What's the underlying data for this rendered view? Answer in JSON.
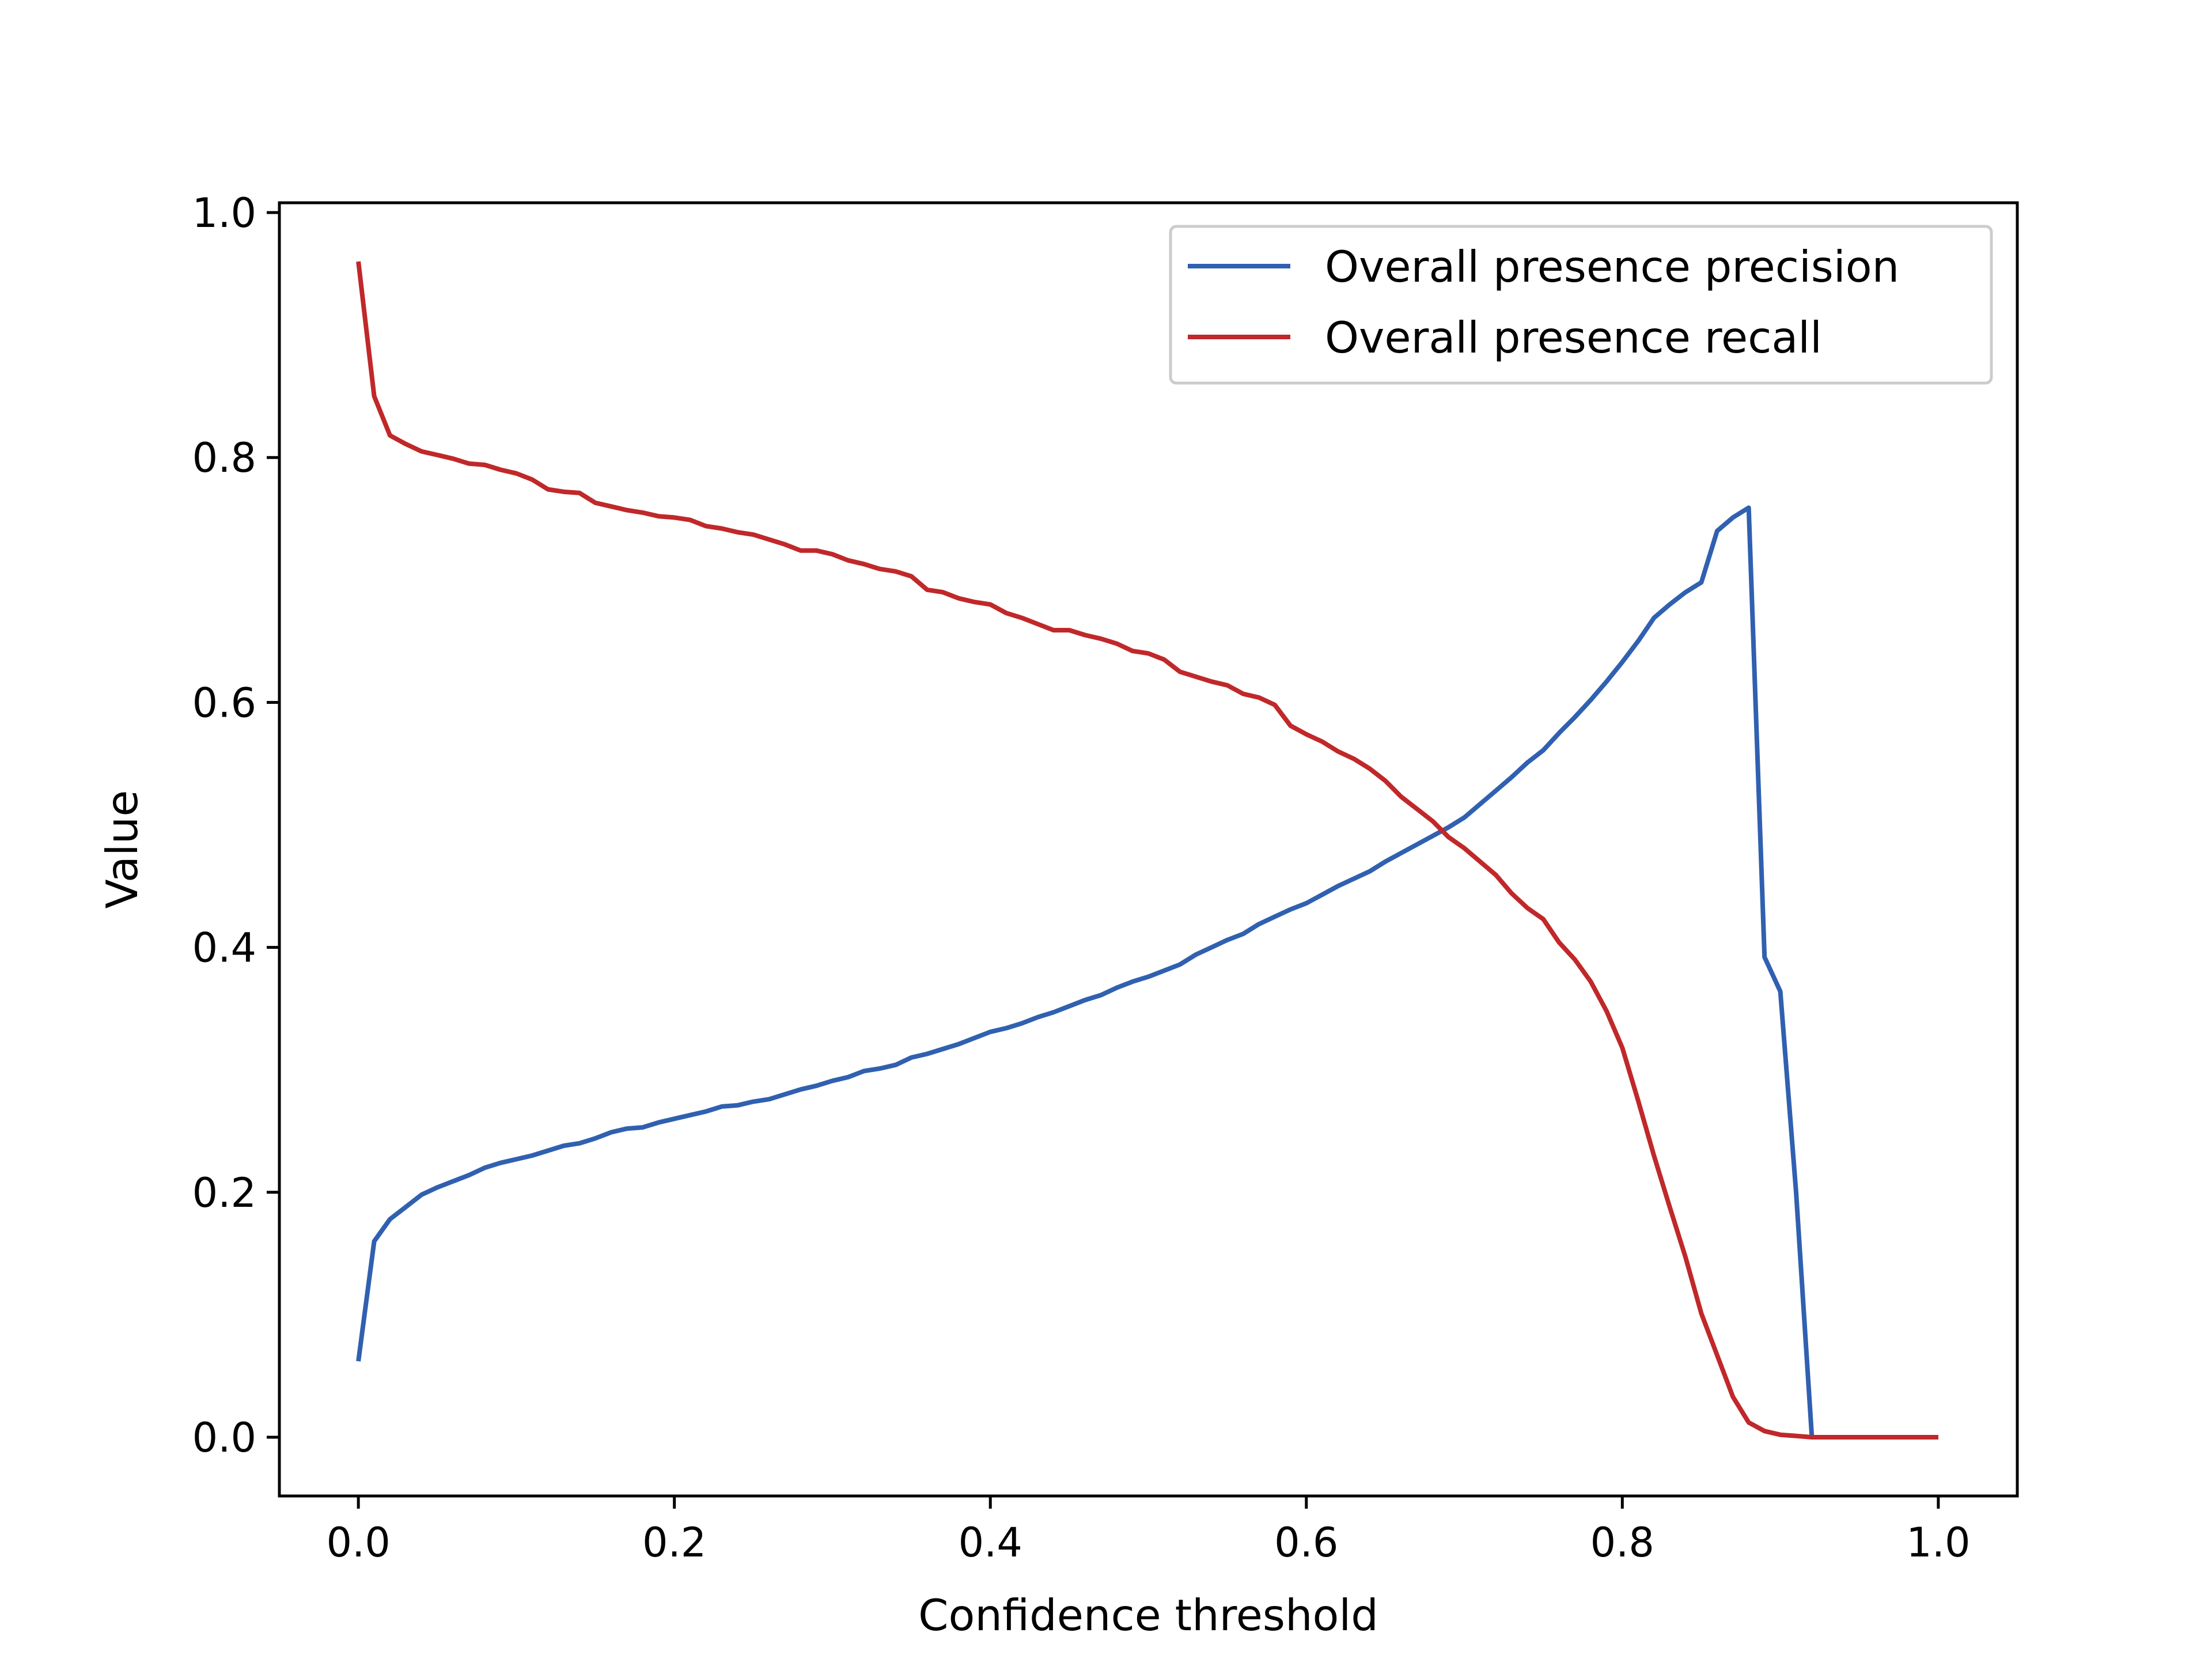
{
  "chart_data": {
    "type": "line",
    "title": "",
    "xlabel": "Confidence threshold",
    "ylabel": "Value",
    "xlim": [
      -0.05,
      1.05
    ],
    "ylim": [
      -0.048,
      1.008
    ],
    "xticks": [
      0.0,
      0.2,
      0.4,
      0.6,
      0.8,
      1.0
    ],
    "xtick_labels": [
      "0.0",
      "0.2",
      "0.4",
      "0.6",
      "0.8",
      "1.0"
    ],
    "yticks": [
      0.0,
      0.2,
      0.4,
      0.6,
      0.8,
      1.0
    ],
    "ytick_labels": [
      "0.0",
      "0.2",
      "0.4",
      "0.6",
      "0.8",
      "1.0"
    ],
    "grid": false,
    "legend_position": "top-right",
    "series": [
      {
        "name": "Overall presence precision",
        "color": "#3060b0",
        "x": [
          0.0,
          0.01,
          0.02,
          0.03,
          0.04,
          0.05,
          0.06,
          0.07,
          0.08,
          0.09,
          0.1,
          0.11,
          0.12,
          0.13,
          0.14,
          0.15,
          0.16,
          0.17,
          0.18,
          0.19,
          0.2,
          0.21,
          0.22,
          0.23,
          0.24,
          0.25,
          0.26,
          0.27,
          0.28,
          0.29,
          0.3,
          0.31,
          0.32,
          0.33,
          0.34,
          0.35,
          0.36,
          0.37,
          0.38,
          0.39,
          0.4,
          0.41,
          0.42,
          0.43,
          0.44,
          0.45,
          0.46,
          0.47,
          0.48,
          0.49,
          0.5,
          0.51,
          0.52,
          0.53,
          0.54,
          0.55,
          0.56,
          0.57,
          0.58,
          0.59,
          0.6,
          0.61,
          0.62,
          0.63,
          0.64,
          0.65,
          0.66,
          0.67,
          0.68,
          0.69,
          0.7,
          0.71,
          0.72,
          0.73,
          0.74,
          0.75,
          0.76,
          0.77,
          0.78,
          0.79,
          0.8,
          0.81,
          0.82,
          0.83,
          0.84,
          0.85,
          0.86,
          0.87,
          0.88,
          0.89,
          0.9,
          0.91,
          0.92,
          0.93,
          0.94,
          0.95,
          0.96,
          0.97,
          0.98,
          0.99,
          1.0
        ],
        "y": [
          0.062,
          0.16,
          0.178,
          0.188,
          0.198,
          0.204,
          0.209,
          0.214,
          0.22,
          0.224,
          0.227,
          0.23,
          0.234,
          0.238,
          0.24,
          0.244,
          0.249,
          0.252,
          0.253,
          0.257,
          0.26,
          0.263,
          0.266,
          0.27,
          0.271,
          0.274,
          0.276,
          0.28,
          0.284,
          0.287,
          0.291,
          0.294,
          0.299,
          0.301,
          0.304,
          0.31,
          0.313,
          0.317,
          0.321,
          0.326,
          0.331,
          0.334,
          0.338,
          0.343,
          0.347,
          0.352,
          0.357,
          0.361,
          0.367,
          0.372,
          0.376,
          0.381,
          0.386,
          0.394,
          0.4,
          0.406,
          0.411,
          0.419,
          0.425,
          0.431,
          0.436,
          0.443,
          0.45,
          0.456,
          0.462,
          0.47,
          0.477,
          0.484,
          0.491,
          0.498,
          0.506,
          0.517,
          0.528,
          0.539,
          0.551,
          0.561,
          0.575,
          0.588,
          0.602,
          0.617,
          0.633,
          0.65,
          0.669,
          0.68,
          0.69,
          0.698,
          0.74,
          0.751,
          0.759,
          0.392,
          0.364,
          0.2,
          0.0,
          0.0,
          0.0,
          0.0,
          0.0,
          0.0,
          0.0,
          0.0,
          0.0
        ]
      },
      {
        "name": "Overall presence recall",
        "color": "#c0282a",
        "x": [
          0.0,
          0.01,
          0.02,
          0.03,
          0.04,
          0.05,
          0.06,
          0.07,
          0.08,
          0.09,
          0.1,
          0.11,
          0.12,
          0.13,
          0.14,
          0.15,
          0.16,
          0.17,
          0.18,
          0.19,
          0.2,
          0.21,
          0.22,
          0.23,
          0.24,
          0.25,
          0.26,
          0.27,
          0.28,
          0.29,
          0.3,
          0.31,
          0.32,
          0.33,
          0.34,
          0.35,
          0.36,
          0.37,
          0.38,
          0.39,
          0.4,
          0.41,
          0.42,
          0.43,
          0.44,
          0.45,
          0.46,
          0.47,
          0.48,
          0.49,
          0.5,
          0.51,
          0.52,
          0.53,
          0.54,
          0.55,
          0.56,
          0.57,
          0.58,
          0.59,
          0.6,
          0.61,
          0.62,
          0.63,
          0.64,
          0.65,
          0.66,
          0.67,
          0.68,
          0.69,
          0.7,
          0.71,
          0.72,
          0.73,
          0.74,
          0.75,
          0.76,
          0.77,
          0.78,
          0.79,
          0.8,
          0.81,
          0.82,
          0.83,
          0.84,
          0.85,
          0.86,
          0.87,
          0.88,
          0.89,
          0.9,
          0.91,
          0.92,
          0.93,
          0.94,
          0.95,
          0.96,
          0.97,
          0.98,
          0.99,
          1.0
        ],
        "y": [
          0.96,
          0.85,
          0.818,
          0.811,
          0.805,
          0.802,
          0.799,
          0.795,
          0.794,
          0.79,
          0.787,
          0.782,
          0.774,
          0.772,
          0.771,
          0.763,
          0.76,
          0.757,
          0.755,
          0.752,
          0.751,
          0.749,
          0.744,
          0.742,
          0.739,
          0.737,
          0.733,
          0.729,
          0.724,
          0.724,
          0.721,
          0.716,
          0.713,
          0.709,
          0.707,
          0.703,
          0.692,
          0.69,
          0.685,
          0.682,
          0.68,
          0.673,
          0.669,
          0.664,
          0.659,
          0.659,
          0.655,
          0.652,
          0.648,
          0.642,
          0.64,
          0.635,
          0.625,
          0.621,
          0.617,
          0.614,
          0.607,
          0.604,
          0.598,
          0.581,
          0.574,
          0.568,
          0.56,
          0.554,
          0.546,
          0.536,
          0.523,
          0.513,
          0.503,
          0.49,
          0.481,
          0.47,
          0.459,
          0.444,
          0.432,
          0.423,
          0.404,
          0.39,
          0.372,
          0.348,
          0.318,
          0.275,
          0.23,
          0.188,
          0.147,
          0.101,
          0.067,
          0.033,
          0.012,
          0.005,
          0.002,
          0.001,
          0.0,
          0.0,
          0.0,
          0.0,
          0.0,
          0.0,
          0.0,
          0.0,
          0.0
        ]
      }
    ]
  }
}
